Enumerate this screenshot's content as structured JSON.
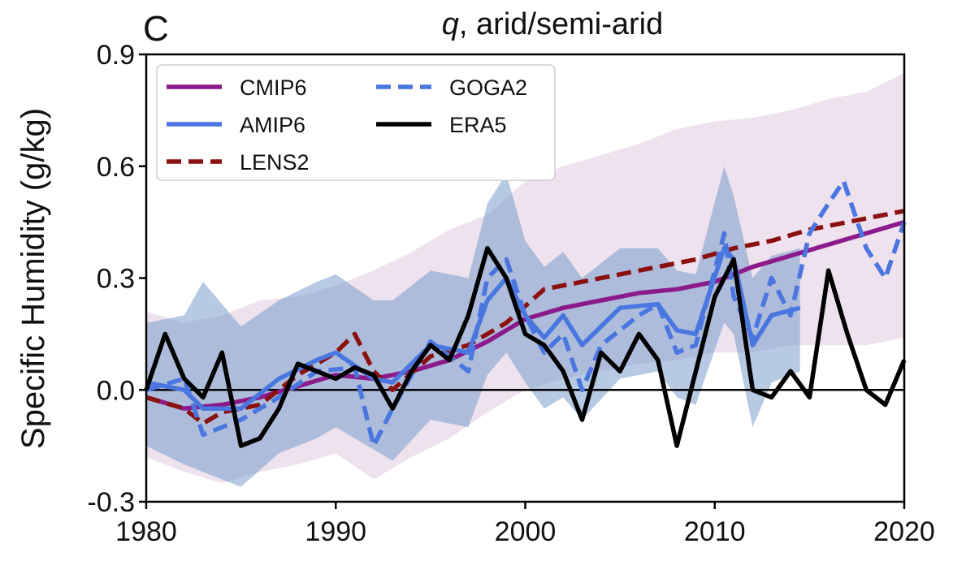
{
  "chart_data": {
    "type": "line",
    "panel_label": "C",
    "title_var": "q",
    "title_rest": ", arid/semi-arid",
    "xlabel": "",
    "ylabel": "Specific Humidity (g/kg)",
    "xlim": [
      1980,
      2020
    ],
    "ylim": [
      -0.3,
      0.9
    ],
    "xticks": [
      1980,
      1990,
      2000,
      2010,
      2020
    ],
    "xtick_labels": [
      "1980",
      "1990",
      "2000",
      "2010",
      "2020"
    ],
    "yticks": [
      -0.3,
      0.0,
      0.3,
      0.6,
      0.9
    ],
    "ytick_labels": [
      "-0.3",
      "0.0",
      "0.3",
      "0.6",
      "0.9"
    ],
    "zero_line": true,
    "grid": false,
    "legend_position": "top-left",
    "legend_columns": 2,
    "series": [
      {
        "name": "CMIP6",
        "color": "#8b1a8b",
        "style": "solid",
        "x": [
          1980,
          1982,
          1984,
          1986,
          1988,
          1990,
          1992,
          1994,
          1996,
          1998,
          2000,
          2002,
          2004,
          2006,
          2008,
          2010,
          2012,
          2014,
          2016,
          2018,
          2020
        ],
        "y": [
          -0.02,
          -0.05,
          -0.04,
          -0.02,
          0.01,
          0.04,
          0.03,
          0.05,
          0.08,
          0.13,
          0.19,
          0.22,
          0.24,
          0.26,
          0.27,
          0.29,
          0.33,
          0.36,
          0.39,
          0.42,
          0.45
        ],
        "band_lower": [
          -0.18,
          -0.22,
          -0.25,
          -0.22,
          -0.2,
          -0.17,
          -0.24,
          -0.18,
          -0.13,
          -0.06,
          0.0,
          0.03,
          0.05,
          0.07,
          0.08,
          0.1,
          0.1,
          0.12,
          0.12,
          0.12,
          0.14
        ],
        "band_upper": [
          0.21,
          0.18,
          0.2,
          0.24,
          0.25,
          0.28,
          0.32,
          0.37,
          0.43,
          0.47,
          0.56,
          0.6,
          0.63,
          0.66,
          0.7,
          0.72,
          0.73,
          0.75,
          0.78,
          0.8,
          0.85
        ]
      },
      {
        "name": "AMIP6",
        "color": "#4a76e0",
        "style": "solid",
        "x": [
          1980,
          1982,
          1983,
          1985,
          1987,
          1989,
          1990,
          1992,
          1993,
          1995,
          1997,
          1998,
          1999,
          2000,
          2001,
          2002,
          2003,
          2005,
          2007,
          2008,
          2009,
          2010.5,
          2011,
          2012,
          2013,
          2014.5
        ],
        "y": [
          0.02,
          0.0,
          -0.05,
          -0.05,
          0.03,
          0.08,
          0.1,
          0.03,
          0.02,
          0.12,
          0.1,
          0.24,
          0.3,
          0.2,
          0.14,
          0.2,
          0.12,
          0.22,
          0.23,
          0.16,
          0.15,
          0.38,
          0.35,
          0.12,
          0.2,
          0.22
        ],
        "band_lower": [
          -0.15,
          -0.2,
          -0.22,
          -0.26,
          -0.17,
          -0.13,
          -0.1,
          -0.16,
          -0.19,
          -0.08,
          -0.1,
          0.04,
          0.1,
          0.02,
          -0.05,
          -0.02,
          -0.08,
          0.03,
          0.05,
          -0.02,
          -0.04,
          0.18,
          0.15,
          -0.1,
          0.02,
          0.05
        ],
        "band_upper": [
          0.18,
          0.2,
          0.29,
          0.17,
          0.24,
          0.29,
          0.31,
          0.24,
          0.24,
          0.32,
          0.3,
          0.5,
          0.58,
          0.4,
          0.33,
          0.37,
          0.3,
          0.38,
          0.38,
          0.32,
          0.31,
          0.6,
          0.52,
          0.3,
          0.36,
          0.38
        ]
      },
      {
        "name": "LENS2",
        "color": "#8b1010",
        "style": "dashed",
        "x": [
          1980,
          1982,
          1983,
          1984,
          1986,
          1988,
          1990,
          1991,
          1992,
          1993,
          1995,
          1997,
          1999,
          2001,
          2003,
          2005,
          2007,
          2009,
          2011,
          2013,
          2015,
          2017,
          2020
        ],
        "y": [
          -0.02,
          -0.05,
          -0.09,
          -0.06,
          -0.04,
          0.04,
          0.1,
          0.15,
          0.05,
          0.0,
          0.09,
          0.12,
          0.18,
          0.27,
          0.29,
          0.31,
          0.33,
          0.35,
          0.38,
          0.4,
          0.43,
          0.45,
          0.48
        ]
      },
      {
        "name": "GOGA2",
        "color": "#4a76e0",
        "style": "dashed",
        "x": [
          1980,
          1982,
          1983,
          1985,
          1987,
          1989,
          1991,
          1992,
          1993,
          1995,
          1997,
          1998,
          1999,
          2000,
          2001,
          2002,
          2003,
          2004,
          2006,
          2007,
          2008,
          2009,
          2010.5,
          2011,
          2012,
          2013,
          2014,
          2015,
          2016,
          2016.8,
          2018,
          2019,
          2020
        ],
        "y": [
          0.0,
          0.03,
          -0.12,
          -0.08,
          -0.02,
          0.05,
          0.06,
          -0.15,
          -0.05,
          0.13,
          0.05,
          0.3,
          0.35,
          0.2,
          0.1,
          0.15,
          0.0,
          0.12,
          0.2,
          0.23,
          0.1,
          0.12,
          0.42,
          0.25,
          0.14,
          0.3,
          0.2,
          0.42,
          0.5,
          0.56,
          0.38,
          0.3,
          0.45
        ]
      },
      {
        "name": "ERA5",
        "color": "#000000",
        "style": "solid",
        "x": [
          1980,
          1981,
          1982,
          1983,
          1984,
          1985,
          1986,
          1987,
          1988,
          1989,
          1990,
          1991,
          1992,
          1993,
          1994,
          1995,
          1996,
          1997,
          1998,
          1999,
          2000,
          2001,
          2002,
          2003,
          2004,
          2005,
          2006,
          2007,
          2008,
          2009,
          2010,
          2011,
          2012,
          2013,
          2014,
          2015,
          2016,
          2017,
          2018,
          2019,
          2020
        ],
        "y": [
          0.0,
          0.15,
          0.03,
          -0.02,
          0.1,
          -0.15,
          -0.13,
          -0.05,
          0.07,
          0.05,
          0.03,
          0.06,
          0.04,
          -0.05,
          0.05,
          0.12,
          0.08,
          0.2,
          0.38,
          0.3,
          0.15,
          0.12,
          0.05,
          -0.08,
          0.1,
          0.05,
          0.15,
          0.08,
          -0.15,
          0.05,
          0.25,
          0.35,
          0.0,
          -0.02,
          0.05,
          -0.02,
          0.32,
          0.15,
          0.0,
          -0.04,
          0.08
        ]
      }
    ]
  }
}
